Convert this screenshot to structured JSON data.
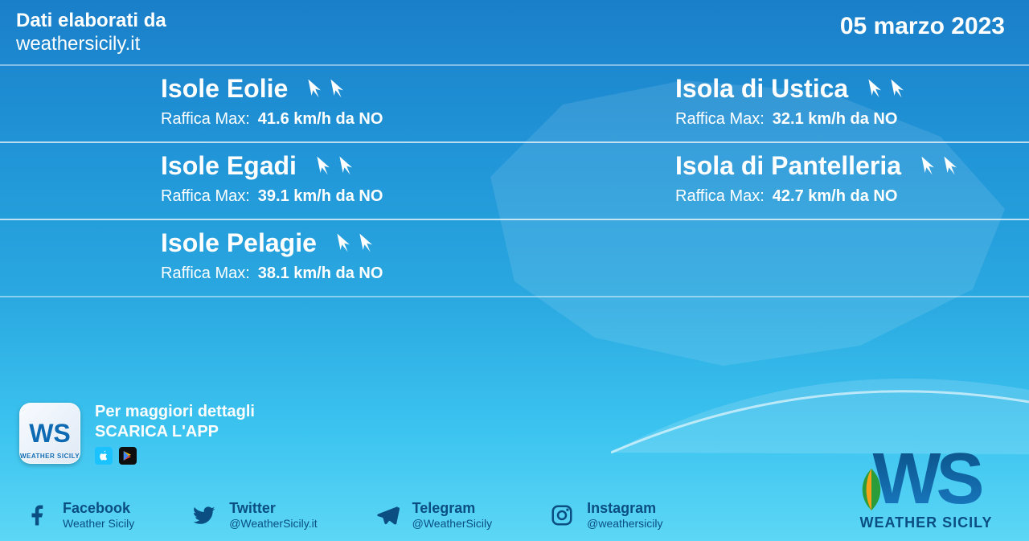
{
  "colors": {
    "bg_top": "#1a7fc9",
    "bg_bottom": "#5dd7f5",
    "row_border": "rgba(255,255,255,0.45)",
    "text_main": "#ffffff",
    "text_dark": "#0a4e82",
    "arrow_fill": "#ffffff",
    "logo_accent": "#f7a11b"
  },
  "header": {
    "line1": "Dati elaborati da",
    "line2": "weathersicily.it",
    "date": "05 marzo 2023"
  },
  "wind_label": "Raffica Max:",
  "locations": [
    {
      "name": "Isole Eolie",
      "value": "41.6 km/h da NO",
      "arrows": 2
    },
    {
      "name": "Isola di Ustica",
      "value": "32.1 km/h da NO",
      "arrows": 2
    },
    {
      "name": "Isole Egadi",
      "value": "39.1 km/h da NO",
      "arrows": 2
    },
    {
      "name": "Isola di Pantelleria",
      "value": "42.7 km/h da NO",
      "arrows": 2
    },
    {
      "name": "Isole Pelagie",
      "value": "38.1 km/h da NO",
      "arrows": 2
    }
  ],
  "app_promo": {
    "line1": "Per maggiori dettagli",
    "line2": "SCARICA L'APP",
    "badge_text": "WS",
    "badge_caption": "WEATHER SICILY"
  },
  "socials": [
    {
      "icon": "facebook",
      "name": "Facebook",
      "handle": "Weather Sicily"
    },
    {
      "icon": "twitter",
      "name": "Twitter",
      "handle": "@WeatherSicily.it"
    },
    {
      "icon": "telegram",
      "name": "Telegram",
      "handle": "@WeatherSicily"
    },
    {
      "icon": "instagram",
      "name": "Instagram",
      "handle": "@weathersicily"
    }
  ],
  "brand": {
    "logo_text": "WS",
    "name": "WEATHER SICILY"
  }
}
